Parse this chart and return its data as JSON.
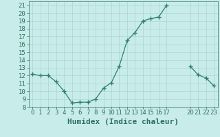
{
  "segments": [
    {
      "x": [
        0,
        1,
        2,
        3,
        4,
        5,
        6,
        7,
        8,
        9,
        10,
        11,
        12,
        13,
        14,
        15,
        16,
        17
      ],
      "y": [
        12.2,
        12.0,
        12.0,
        11.2,
        10.0,
        8.5,
        8.6,
        8.6,
        9.0,
        10.4,
        11.1,
        13.2,
        16.5,
        17.5,
        19.0,
        19.3,
        19.5,
        21.0
      ]
    },
    {
      "x": [
        20,
        21,
        22,
        23
      ],
      "y": [
        13.2,
        12.1,
        11.7,
        10.7
      ]
    }
  ],
  "line_color": "#2e7d6e",
  "marker": "+",
  "marker_size": 5,
  "marker_lw": 1.0,
  "bg_color": "#c8ecea",
  "grid_color": "#aad4d0",
  "xlabel": "Humidex (Indice chaleur)",
  "xlim": [
    -0.5,
    23.5
  ],
  "ylim": [
    8,
    21.5
  ],
  "yticks": [
    8,
    9,
    10,
    11,
    12,
    13,
    14,
    15,
    16,
    17,
    18,
    19,
    20,
    21
  ],
  "xticks": [
    0,
    1,
    2,
    3,
    4,
    5,
    6,
    7,
    8,
    9,
    10,
    11,
    12,
    13,
    14,
    15,
    16,
    17,
    20,
    21,
    22,
    23
  ],
  "tick_fontsize": 6.5,
  "xlabel_fontsize": 8,
  "text_color": "#2e6e60"
}
